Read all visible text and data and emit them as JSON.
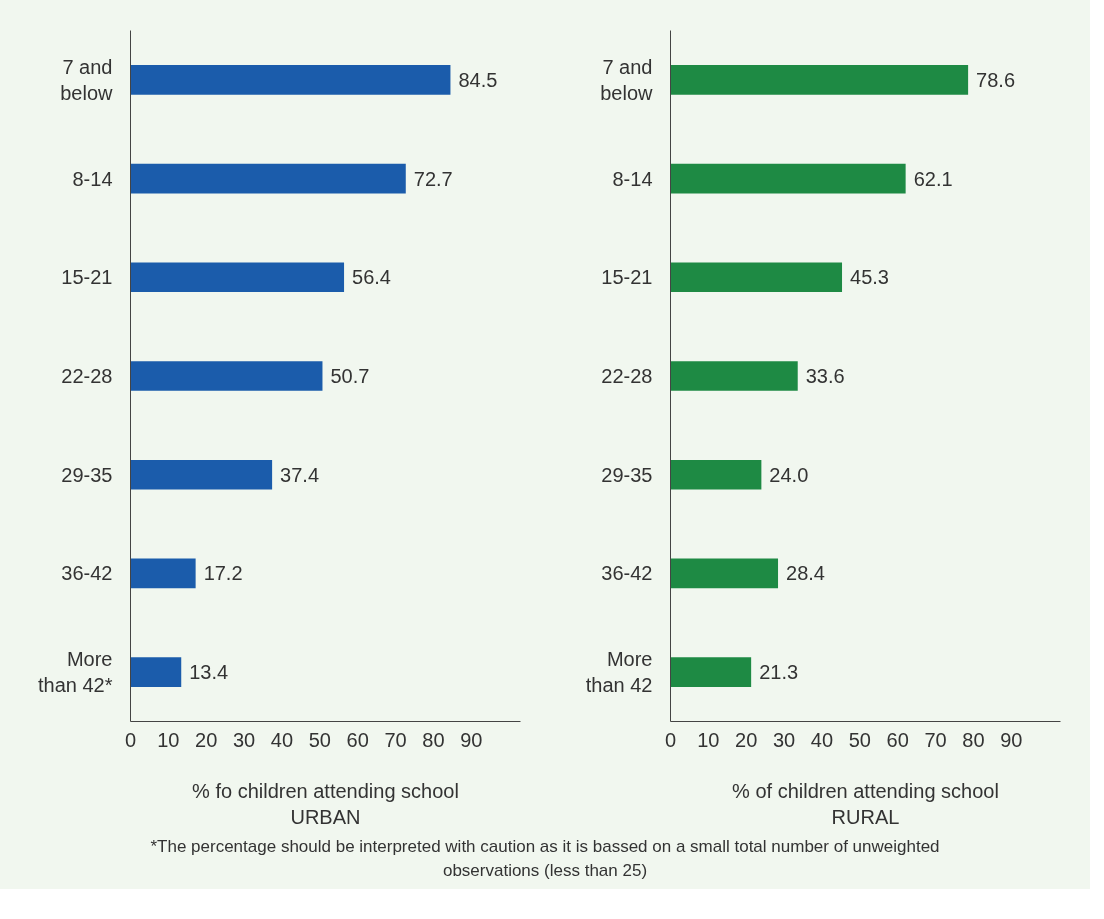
{
  "chart_data": [
    {
      "type": "bar",
      "orientation": "horizontal",
      "xlabel": "% fo children attending school\nURBAN",
      "categories": [
        "7 and below",
        "8-14",
        "15-21",
        "22-28",
        "29-35",
        "36-42",
        "More than 42*"
      ],
      "values": [
        84.5,
        72.7,
        56.4,
        50.7,
        37.4,
        17.2,
        13.4
      ],
      "color": "#1b5cab",
      "xlim": [
        0,
        103
      ],
      "xticks": [
        0,
        10,
        20,
        30,
        40,
        50,
        60,
        70,
        80,
        90
      ],
      "grid": false,
      "data_labels": true,
      "annotations": [
        "*The percentage should be interpreted with caution as it is bassed on a small total number of unweighted observations (less than 25)"
      ]
    },
    {
      "type": "bar",
      "orientation": "horizontal",
      "xlabel": "% of children attending school\nRURAL",
      "categories": [
        "7 and below",
        "8-14",
        "15-21",
        "22-28",
        "29-35",
        "36-42",
        "More than 42"
      ],
      "values": [
        78.6,
        62.1,
        45.3,
        33.6,
        24.0,
        28.4,
        21.3
      ],
      "color": "#1e8a44",
      "value_labels": [
        "78.6",
        "62.1",
        "45.3",
        "33.6",
        "24.0",
        "28.4",
        "21.3"
      ],
      "xlim": [
        0,
        103
      ],
      "xticks": [
        0,
        10,
        20,
        30,
        40,
        50,
        60,
        70,
        80,
        90
      ],
      "grid": false,
      "data_labels": true
    }
  ]
}
